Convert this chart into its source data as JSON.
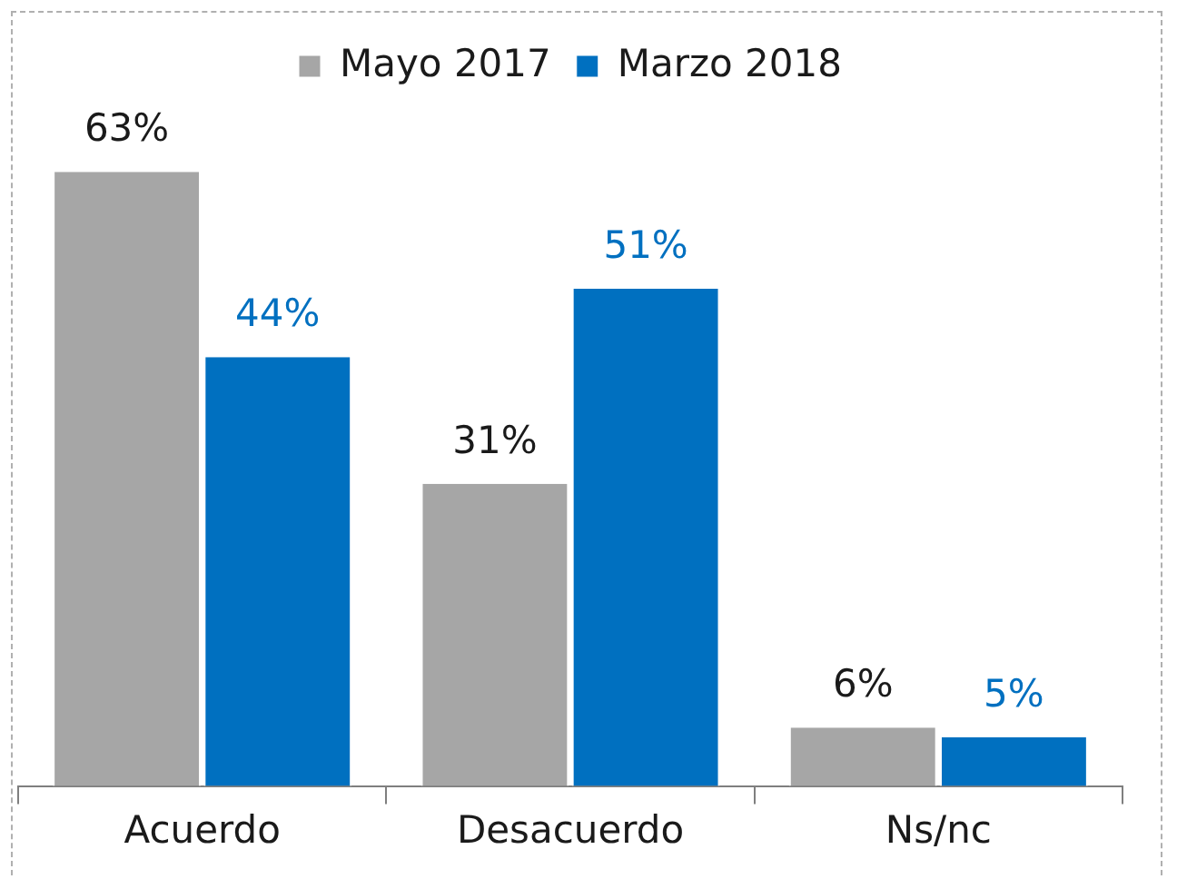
{
  "chart_data": {
    "type": "bar",
    "categories": [
      "Acuerdo",
      "Desacuerdo",
      "Ns/nc"
    ],
    "series": [
      {
        "name": "Mayo 2017",
        "color": "#a6a6a6",
        "values": [
          63,
          31,
          6
        ],
        "value_labels": [
          "63%",
          "31%",
          "6%"
        ]
      },
      {
        "name": "Marzo 2018",
        "color": "#0070c0",
        "values": [
          44,
          51,
          5
        ],
        "value_labels": [
          "44%",
          "51%",
          "5%"
        ]
      }
    ],
    "legend": "top"
  }
}
